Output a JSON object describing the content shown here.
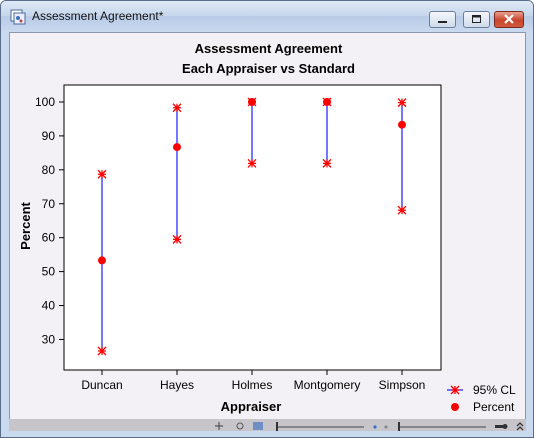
{
  "window": {
    "title": "Assessment Agreement*"
  },
  "chart_data": {
    "type": "interval",
    "title": "Assessment Agreement",
    "subtitle": "Each Appraiser vs Standard",
    "xlabel": "Appraiser",
    "ylabel": "Percent",
    "categories": [
      "Duncan",
      "Hayes",
      "Holmes",
      "Montgomery",
      "Simpson"
    ],
    "yticks": [
      30,
      40,
      50,
      60,
      70,
      80,
      90,
      100
    ],
    "ylim": [
      21,
      105
    ],
    "series": [
      {
        "name": "Percent",
        "marker": "filled-circle",
        "color": "#ff0000",
        "values": [
          53.3,
          86.7,
          100,
          100,
          93.3
        ]
      },
      {
        "name": "95% CL",
        "marker": "asterisk",
        "color": "#ff0000",
        "line_color": "#1a1aff",
        "lower": [
          26.6,
          59.5,
          81.9,
          81.9,
          68.1
        ],
        "upper": [
          78.7,
          98.3,
          100,
          100,
          99.8
        ]
      }
    ],
    "legend": {
      "position": "bottom-right",
      "entries": [
        "95% CL",
        "Percent"
      ]
    },
    "grid": false
  }
}
